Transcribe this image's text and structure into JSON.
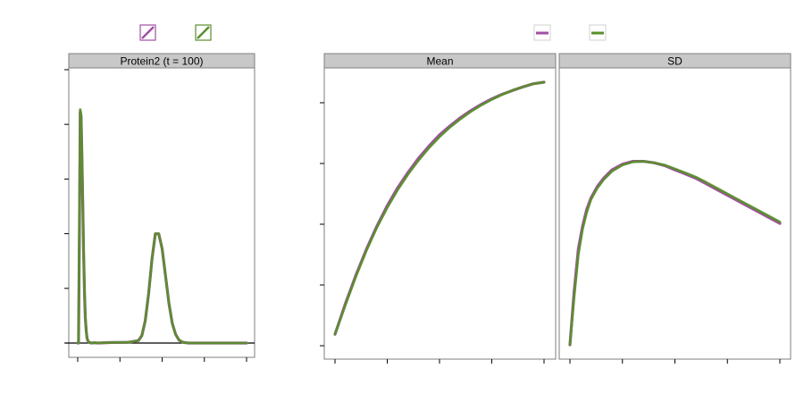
{
  "colors": {
    "series_a": "#a24fa4",
    "series_b": "#5b8e2d",
    "strip_bg": "#c8c8c8",
    "frame": "#7f7f7f",
    "baseline": "#000000"
  },
  "legend_left": {
    "keys": [
      {
        "icon": "hatched-swatch-icon",
        "color": "#a24fa4"
      },
      {
        "icon": "hatched-swatch-icon",
        "color": "#5b8e2d"
      }
    ]
  },
  "legend_right": {
    "keys": [
      {
        "icon": "line-swatch-icon",
        "color": "#a24fa4"
      },
      {
        "icon": "line-swatch-icon",
        "color": "#5b8e2d"
      }
    ]
  },
  "chart_data": [
    {
      "type": "line",
      "panel": "Protein2 (t = 100)",
      "title": "",
      "xlabel": "",
      "ylabel": "",
      "xlim": [
        0,
        1
      ],
      "ylim": [
        0,
        1
      ],
      "x_ticks": 5,
      "y_ticks": 6,
      "grid": false,
      "series": [
        {
          "color": "#a24fa4",
          "x": [
            0.0,
            0.005,
            0.01,
            0.015,
            0.02,
            0.025,
            0.03,
            0.035,
            0.04,
            0.045,
            0.05,
            0.055,
            0.06,
            0.065,
            0.07,
            0.075,
            0.08,
            0.1,
            0.12,
            0.2,
            0.3,
            0.36,
            0.38,
            0.4,
            0.42,
            0.44,
            0.46,
            0.48,
            0.5,
            0.52,
            0.54,
            0.56,
            0.58,
            0.6,
            0.62,
            0.64,
            0.66,
            0.7,
            0.8,
            0.9,
            1.0
          ],
          "values": [
            0.0,
            0.0,
            0.45,
            0.93,
            0.91,
            0.75,
            0.55,
            0.36,
            0.2,
            0.1,
            0.05,
            0.02,
            0.01,
            0.004,
            0.002,
            0.001,
            0.0,
            0.001,
            0.0,
            0.002,
            0.003,
            0.01,
            0.03,
            0.09,
            0.2,
            0.34,
            0.44,
            0.44,
            0.38,
            0.27,
            0.16,
            0.08,
            0.035,
            0.012,
            0.004,
            0.001,
            0.0,
            0.0,
            0.0,
            0.0,
            0.0
          ]
        },
        {
          "color": "#5b8e2d",
          "x": [
            0.0,
            0.005,
            0.01,
            0.015,
            0.02,
            0.025,
            0.03,
            0.035,
            0.04,
            0.045,
            0.05,
            0.055,
            0.06,
            0.065,
            0.07,
            0.075,
            0.08,
            0.1,
            0.12,
            0.2,
            0.3,
            0.36,
            0.38,
            0.4,
            0.42,
            0.44,
            0.46,
            0.48,
            0.5,
            0.52,
            0.54,
            0.56,
            0.58,
            0.6,
            0.62,
            0.64,
            0.66,
            0.7,
            0.8,
            0.9,
            1.0
          ],
          "values": [
            0.0,
            0.0,
            0.46,
            0.94,
            0.92,
            0.76,
            0.56,
            0.37,
            0.21,
            0.11,
            0.05,
            0.02,
            0.01,
            0.004,
            0.002,
            0.001,
            0.0,
            0.001,
            0.0,
            0.002,
            0.003,
            0.01,
            0.03,
            0.09,
            0.2,
            0.34,
            0.44,
            0.44,
            0.38,
            0.27,
            0.16,
            0.08,
            0.035,
            0.012,
            0.004,
            0.001,
            0.0,
            0.0,
            0.0,
            0.0,
            0.0
          ]
        }
      ]
    },
    {
      "type": "line",
      "panel": "Mean",
      "title": "",
      "xlabel": "",
      "ylabel": "",
      "xlim": [
        0,
        1
      ],
      "ylim": [
        0,
        1
      ],
      "x_ticks": 5,
      "y_ticks": 5,
      "grid": false,
      "series": [
        {
          "color": "#a24fa4",
          "x": [
            0.0,
            0.05,
            0.1,
            0.15,
            0.2,
            0.25,
            0.3,
            0.35,
            0.4,
            0.45,
            0.5,
            0.55,
            0.6,
            0.65,
            0.7,
            0.75,
            0.8,
            0.85,
            0.9,
            0.95,
            1.0
          ],
          "values": [
            0.02,
            0.14,
            0.25,
            0.35,
            0.44,
            0.52,
            0.59,
            0.65,
            0.705,
            0.752,
            0.795,
            0.83,
            0.862,
            0.89,
            0.914,
            0.935,
            0.953,
            0.968,
            0.982,
            0.994,
            1.0
          ]
        },
        {
          "color": "#5b8e2d",
          "x": [
            0.0,
            0.05,
            0.1,
            0.15,
            0.2,
            0.25,
            0.3,
            0.35,
            0.4,
            0.45,
            0.5,
            0.55,
            0.6,
            0.65,
            0.7,
            0.75,
            0.8,
            0.85,
            0.9,
            0.95,
            1.0
          ],
          "values": [
            0.02,
            0.135,
            0.245,
            0.345,
            0.435,
            0.513,
            0.582,
            0.643,
            0.697,
            0.745,
            0.788,
            0.825,
            0.857,
            0.886,
            0.911,
            0.933,
            0.952,
            0.968,
            0.982,
            0.994,
            1.0
          ]
        }
      ]
    },
    {
      "type": "line",
      "panel": "SD",
      "title": "",
      "xlabel": "",
      "ylabel": "",
      "xlim": [
        0,
        1
      ],
      "ylim": [
        0,
        1
      ],
      "x_ticks": 5,
      "y_ticks": 0,
      "grid": false,
      "series": [
        {
          "color": "#a24fa4",
          "x": [
            0.0,
            0.02,
            0.04,
            0.06,
            0.08,
            0.1,
            0.13,
            0.16,
            0.2,
            0.25,
            0.3,
            0.35,
            0.4,
            0.45,
            0.5,
            0.55,
            0.6,
            0.65,
            0.7,
            0.8,
            0.9,
            1.0
          ],
          "values": [
            0.0,
            0.19,
            0.34,
            0.42,
            0.48,
            0.52,
            0.56,
            0.59,
            0.62,
            0.64,
            0.65,
            0.65,
            0.645,
            0.635,
            0.62,
            0.605,
            0.59,
            0.57,
            0.55,
            0.51,
            0.47,
            0.43
          ]
        },
        {
          "color": "#5b8e2d",
          "x": [
            0.0,
            0.02,
            0.04,
            0.06,
            0.08,
            0.1,
            0.13,
            0.16,
            0.2,
            0.25,
            0.3,
            0.35,
            0.4,
            0.45,
            0.5,
            0.55,
            0.6,
            0.65,
            0.7,
            0.8,
            0.9,
            1.0
          ],
          "values": [
            0.0,
            0.17,
            0.32,
            0.41,
            0.47,
            0.515,
            0.555,
            0.585,
            0.615,
            0.637,
            0.648,
            0.65,
            0.645,
            0.637,
            0.623,
            0.609,
            0.594,
            0.575,
            0.555,
            0.515,
            0.475,
            0.435
          ]
        }
      ]
    }
  ]
}
